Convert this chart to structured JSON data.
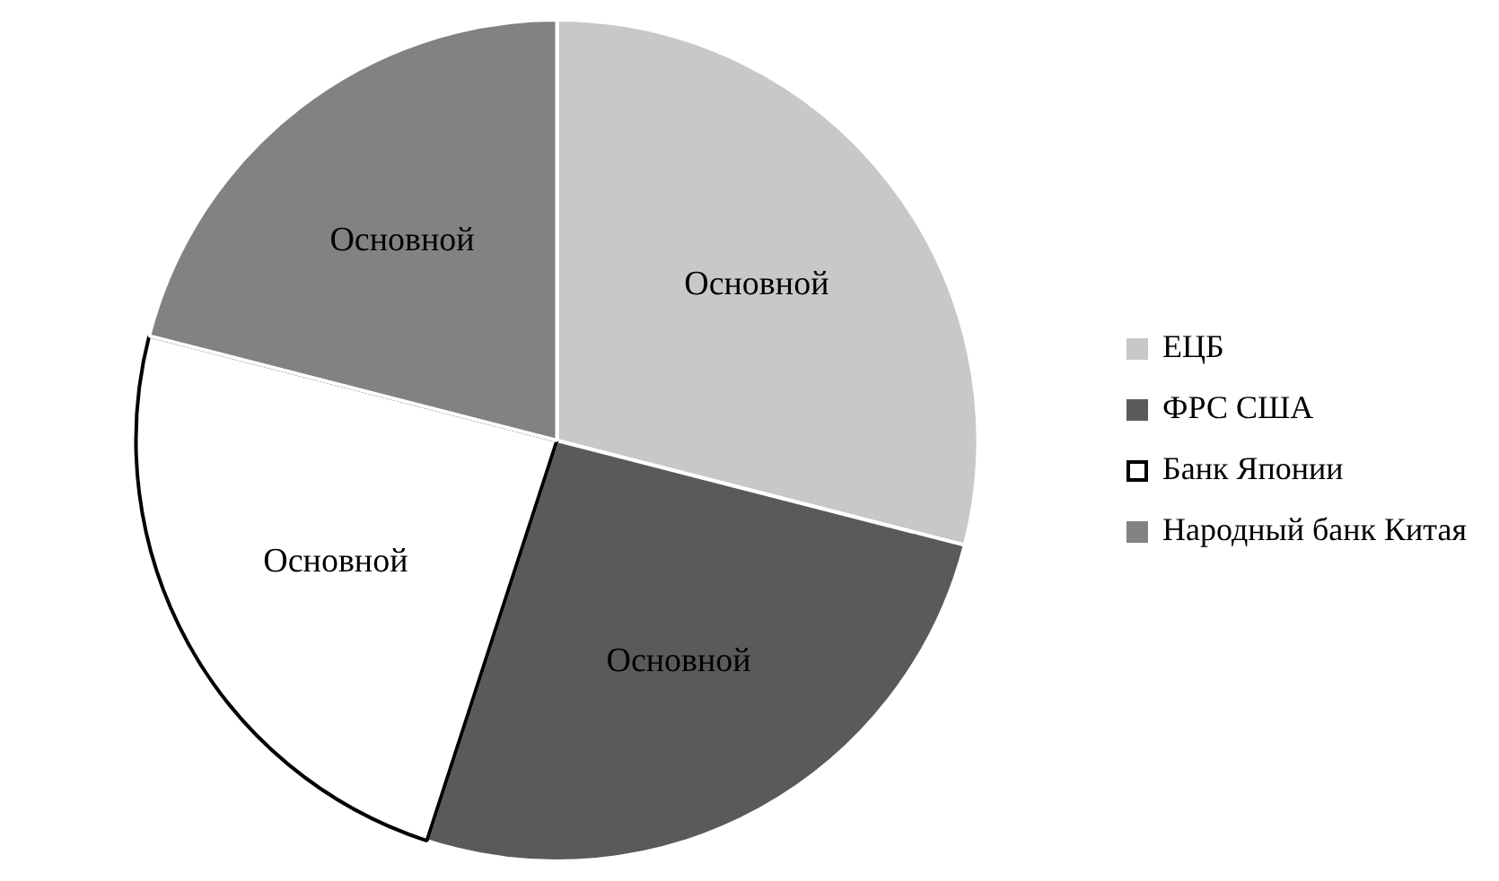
{
  "chart_data": {
    "type": "pie",
    "categories": [
      "ЕЦБ",
      "ФРС США",
      "Банк Японии",
      "Народный банк Китая"
    ],
    "values": [
      29,
      26,
      24,
      21
    ],
    "colors": [
      "#c8c8c8",
      "#5a5a5a",
      "#ffffff",
      "#828282"
    ],
    "value_labels": [
      "Основной",
      "Основной",
      "Основной",
      "Основной"
    ],
    "legend": "right",
    "marker": "square"
  }
}
